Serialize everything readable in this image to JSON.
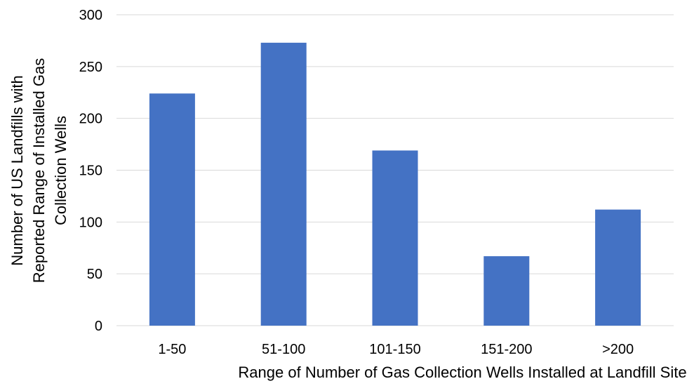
{
  "chart_data": {
    "type": "bar",
    "title": "",
    "categories": [
      "1-50",
      "51-100",
      "101-150",
      "151-200",
      ">200"
    ],
    "values": [
      224,
      273,
      169,
      67,
      112
    ],
    "xlabel": "Range of Number of Gas Collection Wells Installed at Landfill Site",
    "ylabel_lines": [
      "Number of US Landfills with",
      "Reported Range of Installed Gas",
      "Collection Wells"
    ],
    "ylim": [
      0,
      300
    ],
    "y_ticks": [
      0,
      50,
      100,
      150,
      200,
      250,
      300
    ],
    "grid": true,
    "legend": "none",
    "colors": {
      "bar": "#4472C4",
      "gridline": "#D9D9D9",
      "text": "#000000"
    }
  }
}
